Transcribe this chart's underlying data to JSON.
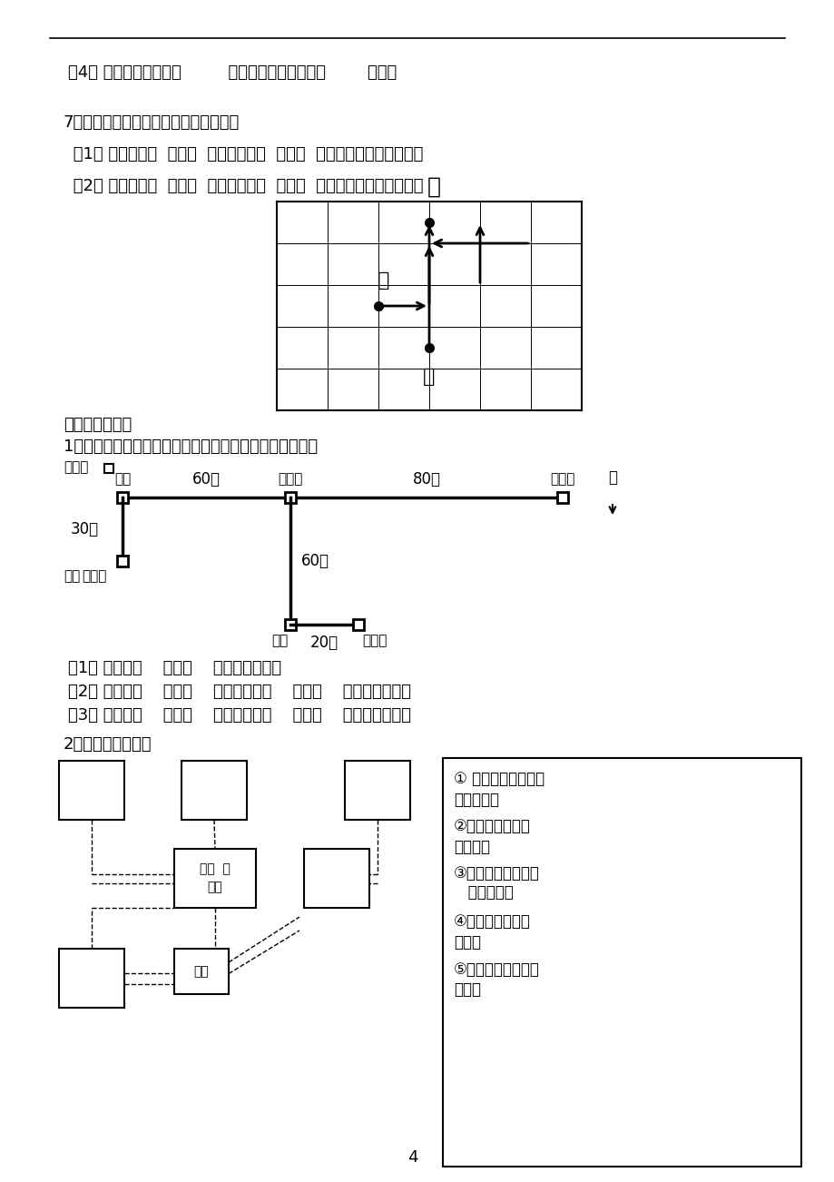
{
  "bg_color": "#ffffff",
  "line4_text": "（4） 小猫住在小狗的（         ）面，住在小松鼠的（        ）面。",
  "q7_title": "7、蜗牛要和蚂蚁一起去甲壳虫家作客。",
  "q7_1": " （1） 蜗牛先向（  ）走（  ）米，再向（  ）走（  ）米，就到达甲壳虫家。",
  "q7_2": " （2） 蚂蚁先向（  ）走（  ）米，再向（  ）走（  ）米，就到达甲壳虫家。",
  "section2_title": "二、解决问题：",
  "q1_title": "1、三个小朋友都从家里去看电影，请你根据下图填一填。",
  "legend_label": "图标：",
  "youju": "邮局",
  "dianyingyuan": "电影院",
  "qiqijia": "奇奇家",
  "pipipia": "皮皮家",
  "shudian": "书店",
  "gegeijia": "格格家",
  "d1": "60米",
  "d2": "80米",
  "d3": "30米",
  "d4": "60米",
  "d5": "20米",
  "bei": "北",
  "tu": "图：",
  "q1a1": "（1） 奇奇向（    ）走（    ）米到电影院。",
  "q1a2": "（2） 格格向（    ）走（    ）米，再向（    ）走（    ）米到电影院。",
  "q1a3": "（3） 皮皮向（    ）走（    ）米，再向（    ）走（    ）米到电影院。",
  "q2_title": "2、根据描述填图。",
  "tutubiao": "图标  小",
  "shulinkw": "树林",
  "damen": "大门",
  "right_texts": [
    "① 鸟的天堂在小树林",
    "的东北角；",
    "②熊猫馆在小树林",
    "的东面；",
    "③海底世界在小树林",
    "   的西南角；",
    "④猴山在小树林的",
    "北面；",
    "⑤虎山在小树林的西",
    "北角。"
  ],
  "page_num": "4"
}
